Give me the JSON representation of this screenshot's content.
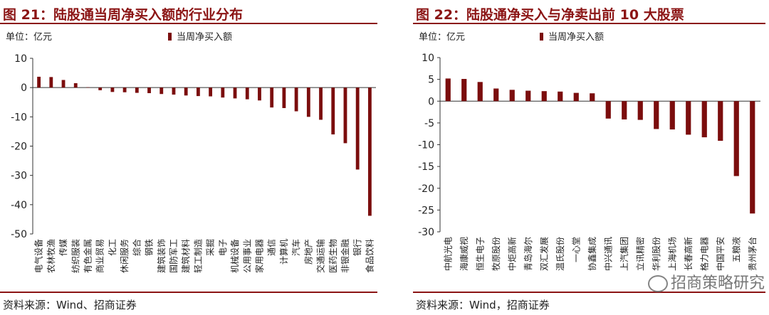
{
  "left": {
    "title": "图 21：陆股通当周净买入额的行业分布",
    "source": "资料来源：Wind、招商证券",
    "chart_data": {
      "type": "bar",
      "unit_label": "单位：亿元",
      "legend": "当周净买入额",
      "legend_position": "top",
      "bar_color": "#7b0d0d",
      "ylim": [
        -50,
        10
      ],
      "yticks": [
        10,
        0,
        -10,
        -20,
        -30,
        -40,
        -50
      ],
      "grid": false,
      "categories": [
        "电气设备",
        "农林牧渔",
        "传媒",
        "纺织服装",
        "有色金属",
        "商业贸易",
        "化工",
        "休闲服务",
        "综合",
        "钢铁",
        "建筑装饰",
        "国防军工",
        "建筑材料",
        "轻工制造",
        "采掘",
        "电子",
        "机械设备",
        "公用事业",
        "家用电器",
        "通信",
        "计算机",
        "汽车",
        "房地产",
        "交通运输",
        "医药生物",
        "非银金融",
        "银行",
        "食品饮料"
      ],
      "values": [
        3.7,
        3.6,
        2.6,
        1.5,
        0.1,
        -0.9,
        -1.5,
        -1.6,
        -1.8,
        -1.9,
        -2.2,
        -2.4,
        -2.7,
        -2.9,
        -3.0,
        -3.4,
        -3.7,
        -4.0,
        -4.4,
        -6.8,
        -7.0,
        -8.1,
        -10.0,
        -11.0,
        -16.0,
        -19.0,
        -28.0,
        -43.8
      ]
    }
  },
  "right": {
    "title": "图 22：陆股通净买入与净卖出前 10 大股票",
    "source": "资料来源：Wind，招商证券",
    "watermark": "招商策略研究",
    "chart_data": {
      "type": "bar",
      "unit_label": "单位：亿元",
      "legend": "当周净买入额",
      "legend_position": "top",
      "bar_color": "#7b0d0d",
      "ylim": [
        -30,
        10
      ],
      "yticks": [
        10,
        5,
        0,
        -5,
        -10,
        -15,
        -20,
        -25,
        -30
      ],
      "grid": false,
      "categories": [
        "中航光电",
        "海康威视",
        "恒生电子",
        "牧原股份",
        "中炬高新",
        "青岛海尔",
        "双汇发展",
        "温氏股份",
        "一心堂",
        "协鑫集成",
        "中兴通讯",
        "上汽集团",
        "立讯精密",
        "华利股份",
        "上海机场",
        "长春高新",
        "格力电器",
        "中国平安",
        "五粮液",
        "贵州茅台"
      ],
      "values": [
        5.2,
        5.1,
        4.4,
        2.9,
        2.6,
        2.4,
        2.3,
        2.2,
        1.9,
        1.8,
        -4.0,
        -4.2,
        -4.3,
        -6.4,
        -6.5,
        -7.7,
        -8.3,
        -9.1,
        -17.2,
        -25.8
      ]
    }
  }
}
